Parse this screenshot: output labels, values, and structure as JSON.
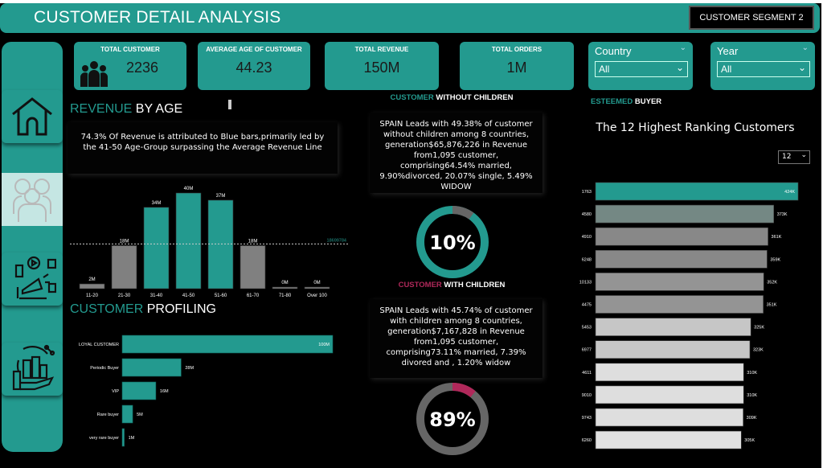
{
  "header": {
    "title": "CUSTOMER DETAIL ANALYSIS",
    "segment_button": "CUSTOMER SEGMENT 2"
  },
  "kpis": [
    {
      "label": "TOTAL CUSTOMER",
      "value": "2236",
      "icon": "people-icon"
    },
    {
      "label": "AVERAGE AGE OF CUSTOMER",
      "value": "44.23"
    },
    {
      "label": "TOTAL REVENUE",
      "value": "150M"
    },
    {
      "label": "TOTAL ORDERS",
      "value": "1M"
    }
  ],
  "slicers": [
    {
      "label": "Country",
      "value": "All"
    },
    {
      "label": "Year",
      "value": "All"
    }
  ],
  "sidebar": {
    "items": [
      {
        "icon": "home-icon"
      },
      {
        "icon": "customers-icon",
        "selected": true
      },
      {
        "icon": "marketing-icon"
      },
      {
        "icon": "finance-icon"
      }
    ]
  },
  "colors": {
    "accent": "#239a8f",
    "highlight_pink": "#b0285a",
    "grey": "#808080"
  },
  "revenue_by_age": {
    "title_accent": "REVENUE",
    "title_rest": " BY AGE",
    "insight": "74.3% Of Revenue is attributed to Blue bars,primarily led by the 41-50 Age-Group surpassing the Average Revenue Line",
    "chart_data": {
      "type": "bar",
      "categories": [
        "11-20",
        "21-30",
        "31-40",
        "41-50",
        "51-60",
        "61-70",
        "71-80",
        "Over 100"
      ],
      "values": [
        2,
        18,
        34,
        40,
        37,
        18,
        0.2,
        0.1
      ],
      "data_labels": [
        "2M",
        "18M",
        "34M",
        "40M",
        "37M",
        "18M",
        "0M",
        "0M"
      ],
      "unit": "M",
      "highlighted": [
        "31-40",
        "41-50",
        "51-60"
      ],
      "average_line": {
        "value": 18.699784,
        "label": "18699784"
      }
    }
  },
  "customer_profiling": {
    "title_accent": "CUSTOMER",
    "title_rest": " PROFILING",
    "chart_data": {
      "type": "bar",
      "orientation": "horizontal",
      "categories": [
        "LOYAL CUSTOMER",
        "Periodic Buyer",
        "VIP",
        "Rare buyer",
        "very rare buyer"
      ],
      "values": [
        100,
        28,
        16,
        5,
        1
      ],
      "data_labels": [
        "100M",
        "28M",
        "16M",
        "5M",
        "1M"
      ]
    }
  },
  "without_children": {
    "title_accent": "CUSTOMER",
    "title_rest": " WITHOUT CHILDREN",
    "text": "SPAIN Leads with 49.38% of customer without children among 8 countries, generation$65,876,226 in Revenue from1,095 customer, comprising64.54% married, 9.90%divorced, 20.07% single, 5.49% WIDOW",
    "donut_label": "10%",
    "donut_value": 10
  },
  "with_children": {
    "title_accent": "CUSTOMER",
    "title_rest": " WITH CHILDREN",
    "text": "SPAIN Leads with 45.74% of customer with children among 8 countries, generation$7,167,828 in Revenue from1,095 customer, comprising73.11% married, 7.39% divored and , 1.20% widow",
    "donut_label": "89%",
    "donut_value": 89
  },
  "esteemed_buyer": {
    "title_accent": "ESTEEMED",
    "title_rest": " BUYER",
    "chart_title": "The 12 Highest Ranking Customers",
    "top_n": "12",
    "chart_data": {
      "type": "bar",
      "orientation": "horizontal",
      "categories": [
        "1763",
        "4580",
        "4910",
        "6248",
        "10133",
        "4475",
        "5453",
        "6977",
        "4611",
        "9010",
        "9743",
        "6260"
      ],
      "values": [
        424,
        373,
        361,
        359,
        352,
        351,
        325,
        323,
        310,
        310,
        309,
        305
      ],
      "data_labels": [
        "424K",
        "373K",
        "361K",
        "359K",
        "352K",
        "351K",
        "325K",
        "323K",
        "310K",
        "310K",
        "309K",
        "305K"
      ],
      "unit": "K"
    }
  }
}
